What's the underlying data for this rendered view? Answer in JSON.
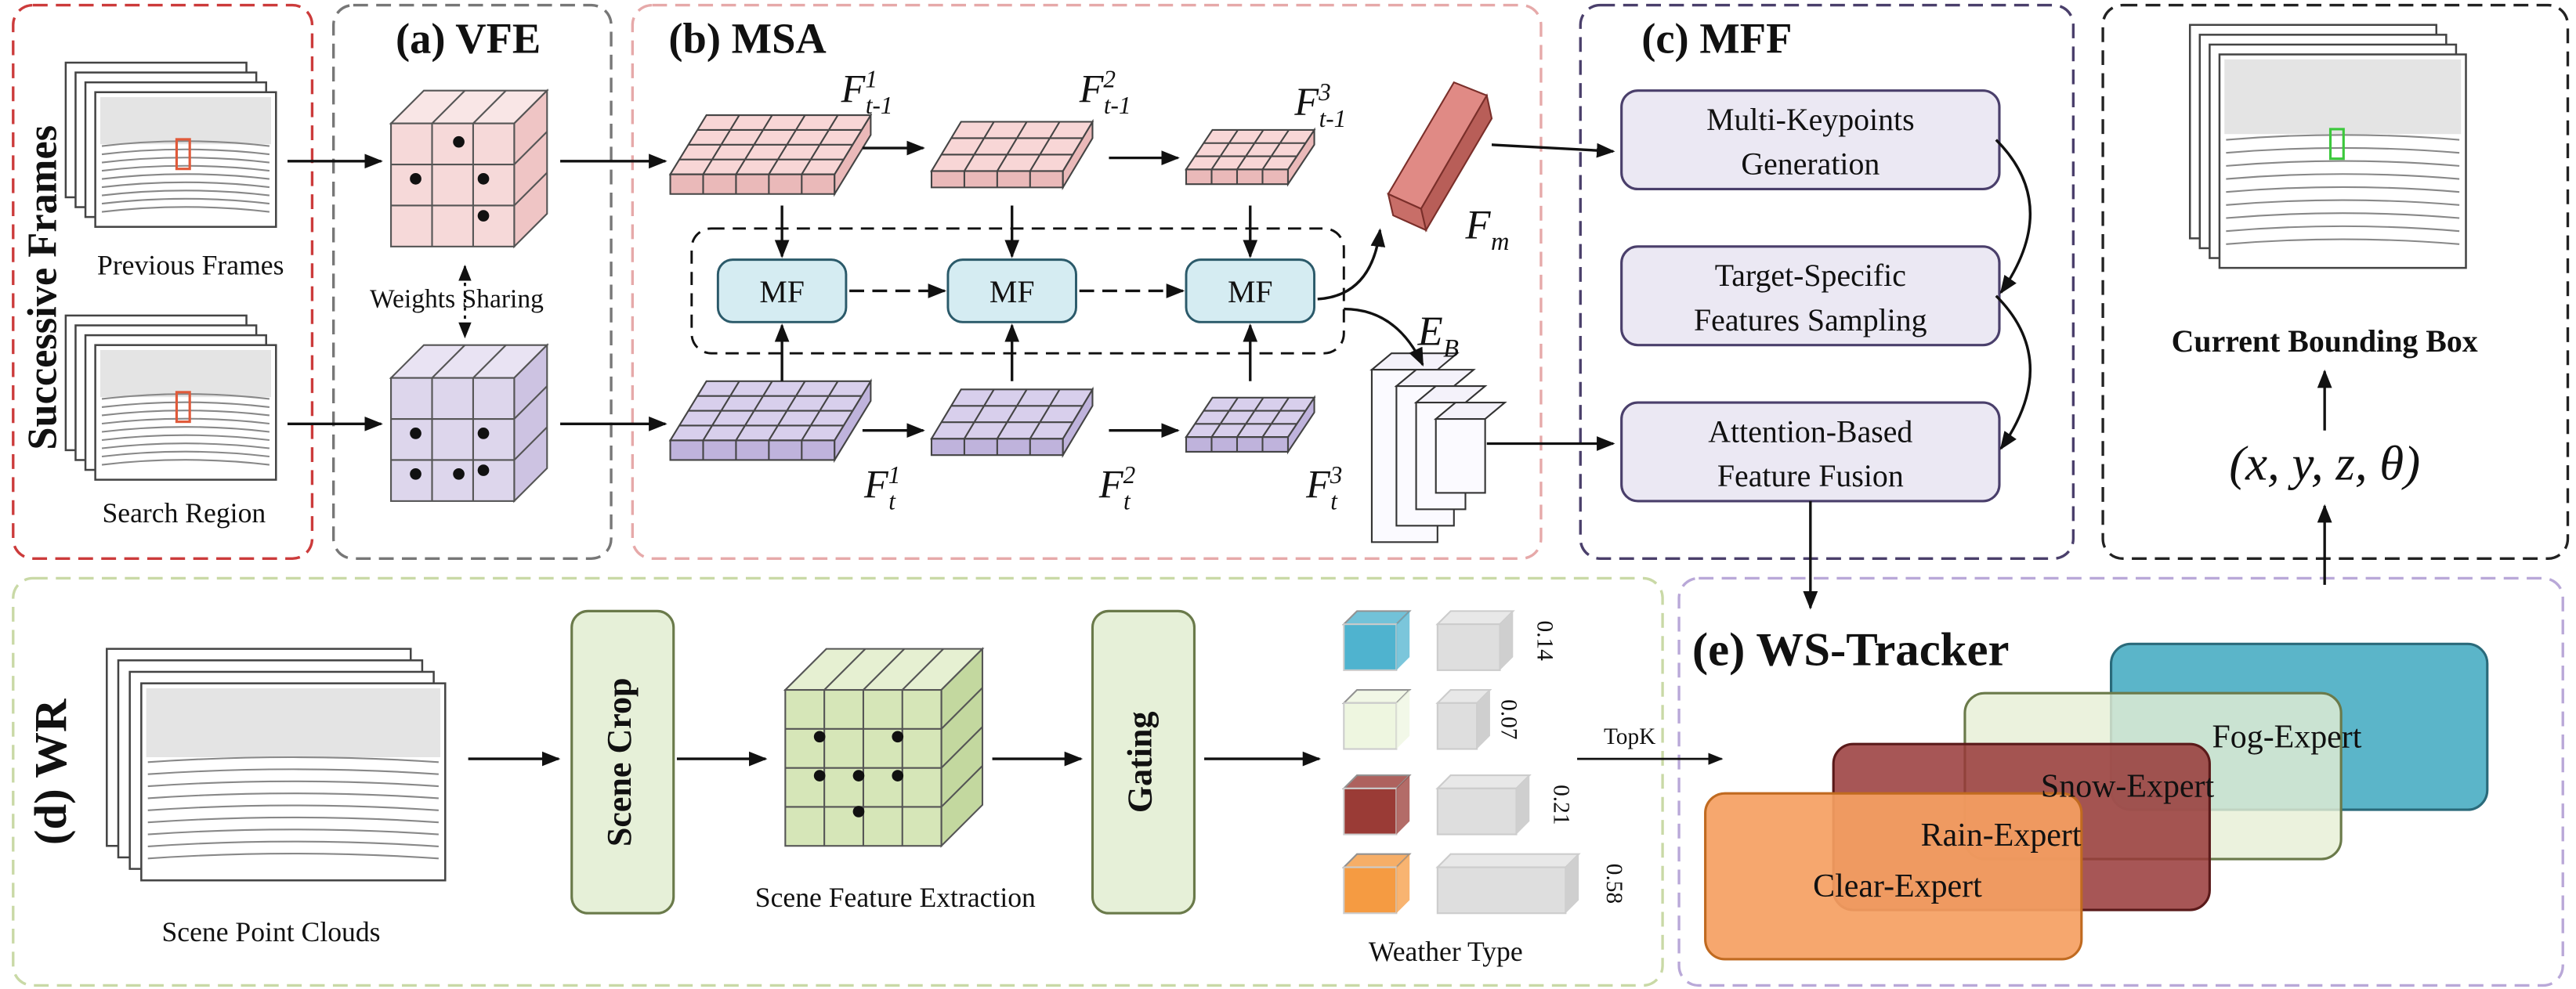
{
  "frames": {
    "title": "Successive Frames",
    "previous": "Previous Frames",
    "search": "Search Region"
  },
  "vfe": {
    "title": "(a) VFE",
    "sharing": "Weights Sharing"
  },
  "msa": {
    "title": "(b) MSA",
    "template_features": [
      {
        "base": "F",
        "sup": "1",
        "sub": "t-1"
      },
      {
        "base": "F",
        "sup": "2",
        "sub": "t-1"
      },
      {
        "base": "F",
        "sup": "3",
        "sub": "t-1"
      }
    ],
    "search_features": [
      {
        "base": "F",
        "sup": "1",
        "sub": "t"
      },
      {
        "base": "F",
        "sup": "2",
        "sub": "t"
      },
      {
        "base": "F",
        "sup": "3",
        "sub": "t"
      }
    ],
    "mf": [
      "MF",
      "MF",
      "MF"
    ],
    "fm": {
      "base": "F",
      "sub": "m"
    },
    "eb": {
      "base": "E",
      "sub": "B"
    }
  },
  "mff": {
    "title": "(c) MFF",
    "steps": [
      [
        "Multi-Keypoints",
        "Generation"
      ],
      [
        "Target-Specific",
        "Features Sampling"
      ],
      [
        "Attention-Based",
        "Feature Fusion"
      ]
    ]
  },
  "output": {
    "title": "Current Bounding Box",
    "state": "(x, y, z, θ)"
  },
  "wr": {
    "title": "(d) WR",
    "scene": "Scene Point Clouds",
    "crop": "Scene Crop",
    "extraction": "Scene Feature Extraction",
    "gating": "Gating",
    "weather_label": "Weather Type",
    "weights": [
      0.14,
      0.07,
      0.21,
      0.58
    ],
    "topk": "TopK"
  },
  "tracker": {
    "title": "(e) WS-Tracker",
    "experts": [
      "Fog-Expert",
      "Snow-Expert",
      "Rain-Expert",
      "Clear-Expert"
    ]
  }
}
